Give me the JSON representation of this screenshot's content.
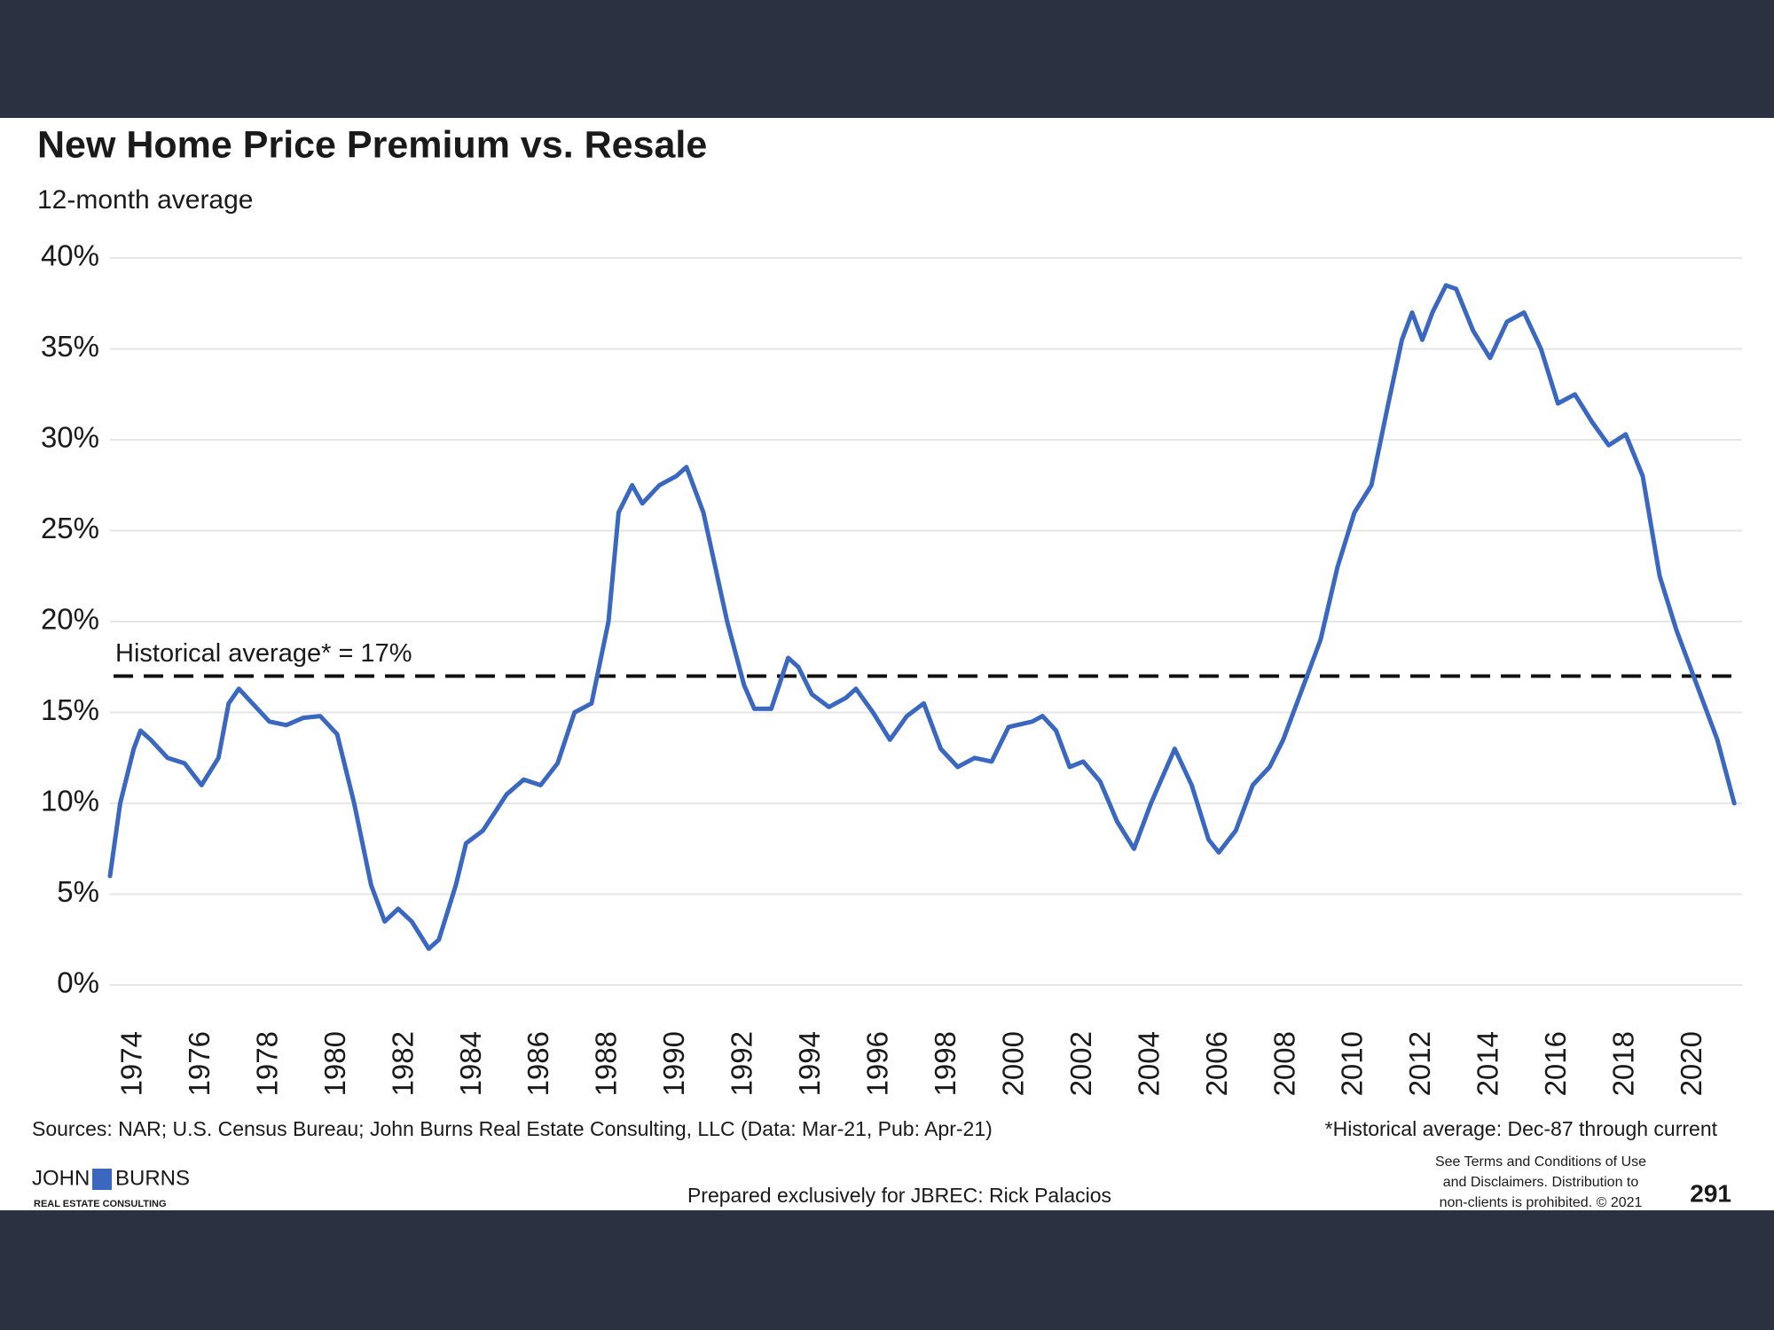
{
  "chart_data": {
    "type": "line",
    "title": "New Home Price Premium vs. Resale",
    "subtitle": "12-month average",
    "x": [
      1973.3,
      1973.6,
      1974.0,
      1974.2,
      1974.5,
      1975.0,
      1975.5,
      1976.0,
      1976.5,
      1976.8,
      1977.1,
      1977.5,
      1978.0,
      1978.5,
      1979.0,
      1979.5,
      1980.0,
      1980.5,
      1981.0,
      1981.4,
      1981.8,
      1982.2,
      1982.7,
      1983.0,
      1983.5,
      1983.8,
      1984.3,
      1985.0,
      1985.5,
      1986.0,
      1986.5,
      1987.0,
      1987.5,
      1988.0,
      1988.3,
      1988.7,
      1989.0,
      1989.5,
      1990.0,
      1990.3,
      1990.8,
      1991.5,
      1992.0,
      1992.3,
      1992.8,
      1993.3,
      1993.6,
      1994.0,
      1994.5,
      1995.0,
      1995.3,
      1995.8,
      1996.3,
      1996.8,
      1997.3,
      1997.8,
      1998.3,
      1998.8,
      1999.3,
      1999.8,
      2000.5,
      2000.8,
      2001.2,
      2001.6,
      2002.0,
      2002.5,
      2003.0,
      2003.5,
      2004.0,
      2004.7,
      2005.2,
      2005.7,
      2006.0,
      2006.5,
      2007.0,
      2007.5,
      2007.9,
      2008.5,
      2009.0,
      2009.5,
      2010.0,
      2010.5,
      2011.0,
      2011.4,
      2011.7,
      2012.0,
      2012.3,
      2012.7,
      2013.0,
      2013.5,
      2014.0,
      2014.5,
      2015.0,
      2015.5,
      2016.0,
      2016.5,
      2017.0,
      2017.5,
      2018.0,
      2018.5,
      2019.0,
      2019.5,
      2020.0,
      2020.3,
      2020.7,
      2021.2
    ],
    "values": [
      6,
      10,
      13,
      14,
      13.5,
      12.5,
      12.2,
      11,
      12.5,
      15.5,
      16.3,
      15.5,
      14.5,
      14.3,
      14.7,
      14.8,
      13.8,
      10,
      5.5,
      3.5,
      4.2,
      3.5,
      2,
      2.5,
      5.5,
      7.8,
      8.5,
      10.5,
      11.3,
      11,
      12.2,
      15,
      15.5,
      20,
      26,
      27.5,
      26.5,
      27.5,
      28,
      28.5,
      26,
      20,
      16.5,
      15.2,
      15.2,
      18,
      17.5,
      16,
      15.3,
      15.8,
      16.3,
      15,
      13.5,
      14.8,
      15.5,
      13,
      12,
      12.5,
      12.3,
      14.2,
      14.5,
      14.8,
      14,
      12,
      12.3,
      11.2,
      9,
      7.5,
      10,
      13,
      11,
      8,
      7.3,
      8.5,
      11,
      12,
      13.5,
      16.5,
      19,
      23,
      26,
      27.5,
      32,
      35.5,
      37,
      35.5,
      37,
      38.5,
      38.3,
      36,
      34.5,
      36.5,
      37,
      35,
      32,
      32.5,
      31,
      29.7,
      30.3,
      28,
      22.5,
      19.5,
      17,
      15.5,
      13.5,
      10
    ],
    "color": "#3a68c0",
    "xlim": [
      1973.3,
      2021.3
    ],
    "xticks": [
      1974,
      1976,
      1978,
      1980,
      1982,
      1984,
      1986,
      1988,
      1990,
      1992,
      1994,
      1996,
      1998,
      2000,
      2002,
      2004,
      2006,
      2008,
      2010,
      2012,
      2014,
      2016,
      2018,
      2020
    ],
    "ylim": [
      0,
      40
    ],
    "yticks": [
      {
        "value": 0,
        "label": "0%"
      },
      {
        "value": 5,
        "label": "5%"
      },
      {
        "value": 10,
        "label": "10%"
      },
      {
        "value": 15,
        "label": "15%"
      },
      {
        "value": 20,
        "label": "20%"
      },
      {
        "value": 25,
        "label": "25%"
      },
      {
        "value": 30,
        "label": "30%"
      },
      {
        "value": 35,
        "label": "35%"
      },
      {
        "value": 40,
        "label": "40%"
      }
    ],
    "grid": true,
    "reference_line": {
      "value": 17,
      "label": "Historical average* = 17%",
      "style": "dashed"
    },
    "source": "Sources: NAR; U.S. Census Bureau; John Burns Real Estate Consulting, LLC (Data: Mar-21, Pub: Apr-21)",
    "footnote": "*Historical average: Dec-87 through current"
  },
  "footer": {
    "logo": [
      "JOHN",
      "BURNS",
      "REAL ESTATE CONSULTING"
    ],
    "prepared_for": "Prepared exclusively for JBREC: Rick Palacios",
    "disclaimer": [
      "See Terms and Conditions of Use",
      "and Disclaimers. Distribution to",
      "non-clients is prohibited. © 2021"
    ],
    "page_number": "291"
  }
}
